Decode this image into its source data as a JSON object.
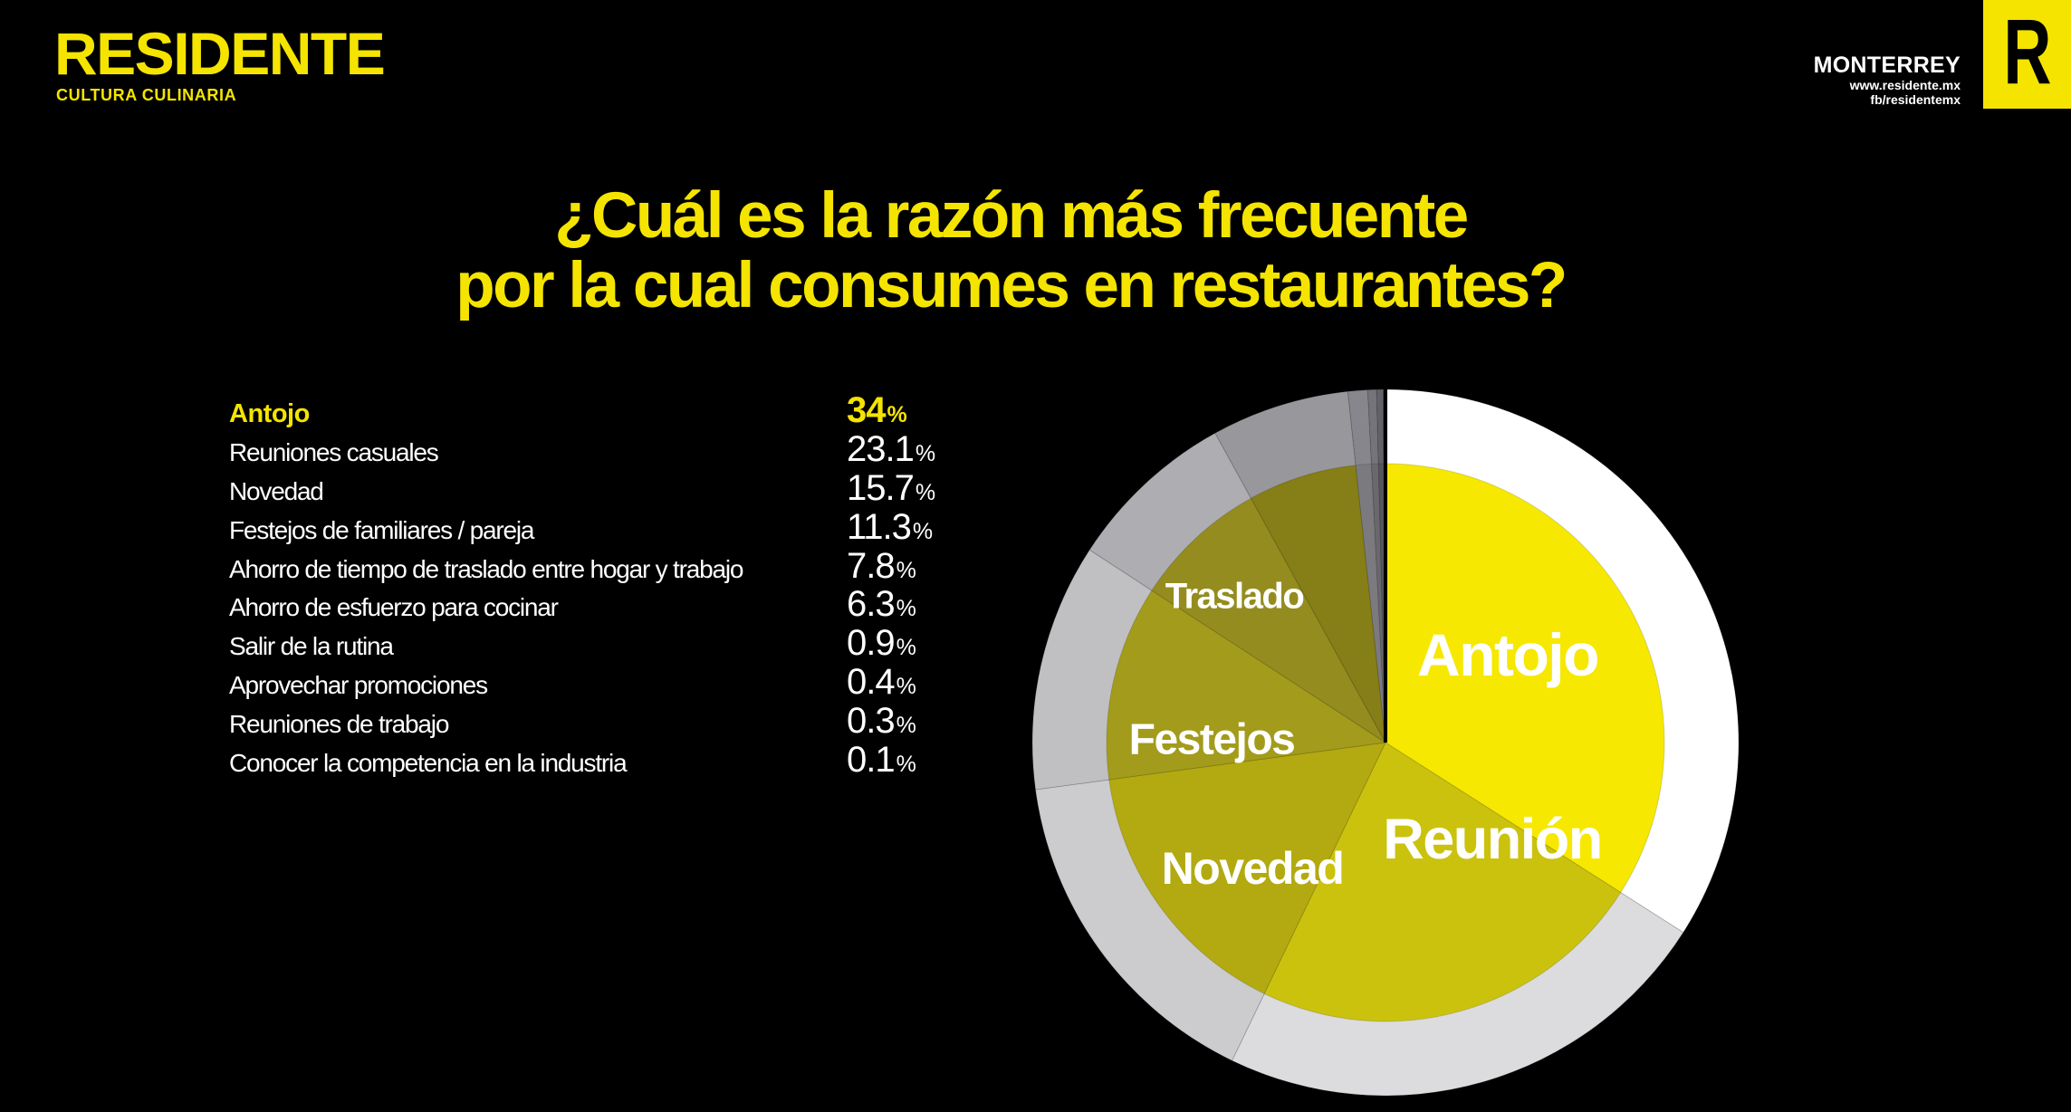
{
  "page": {
    "background": "#000000"
  },
  "colors": {
    "accent_yellow": "#F4E400",
    "text_white": "#FFFFFF",
    "pie_divider": "#000000"
  },
  "header": {
    "brand": {
      "title": "RESIDENTE",
      "subtitle": "CULTURA CULINARIA"
    },
    "city": "MONTERREY",
    "website": "www.residente.mx",
    "facebook": "fb/residentemx",
    "badge_letter": "R"
  },
  "title": {
    "line1": "¿Cuál es la razón más frecuente",
    "line2": "por la cual consumes en restaurantes?"
  },
  "chart_data": {
    "type": "pie",
    "title": "¿Cuál es la razón más frecuente por la cual consumes en restaurantes?",
    "unit": "%",
    "direction": "clockwise",
    "start_angle_deg": 0,
    "categories": [
      "Antojo",
      "Reuniones casuales",
      "Novedad",
      "Festejos de familiares / pareja",
      "Ahorro de tiempo de traslado entre hogar y trabajo",
      "Ahorro de esfuerzo para cocinar",
      "Salir de la rutina",
      "Aprovechar promociones",
      "Reuniones de trabajo",
      "Conocer la competencia en la industria"
    ],
    "values": [
      34,
      23.1,
      15.7,
      11.3,
      7.8,
      6.3,
      0.9,
      0.4,
      0.3,
      0.1
    ],
    "display_values": [
      "34",
      "23.1",
      "15.7",
      "11.3",
      "7.8",
      "6.3",
      "0.9",
      "0.4",
      "0.3",
      "0.1"
    ],
    "highlight_index": 0,
    "slice_labels": [
      "Antojo",
      "Reunión",
      "Novedad",
      "Festejos",
      "Traslado",
      "",
      "",
      "",
      "",
      ""
    ],
    "inner_colors": [
      "#F6E800",
      "#CBC20E",
      "#B2AA10",
      "#A39B1B",
      "#948C1E",
      "#867E16",
      "#7B7B7F",
      "#69696D",
      "#57575B",
      "#454549"
    ],
    "outer_colors": [
      "#FFFFFF",
      "#DCDCDE",
      "#CCCCCE",
      "#C0C0C2",
      "#AEAEB2",
      "#98989C",
      "#86868C",
      "#74747A",
      "#626268",
      "#505056"
    ],
    "legend_position": "left",
    "labels_on_slices": true
  }
}
